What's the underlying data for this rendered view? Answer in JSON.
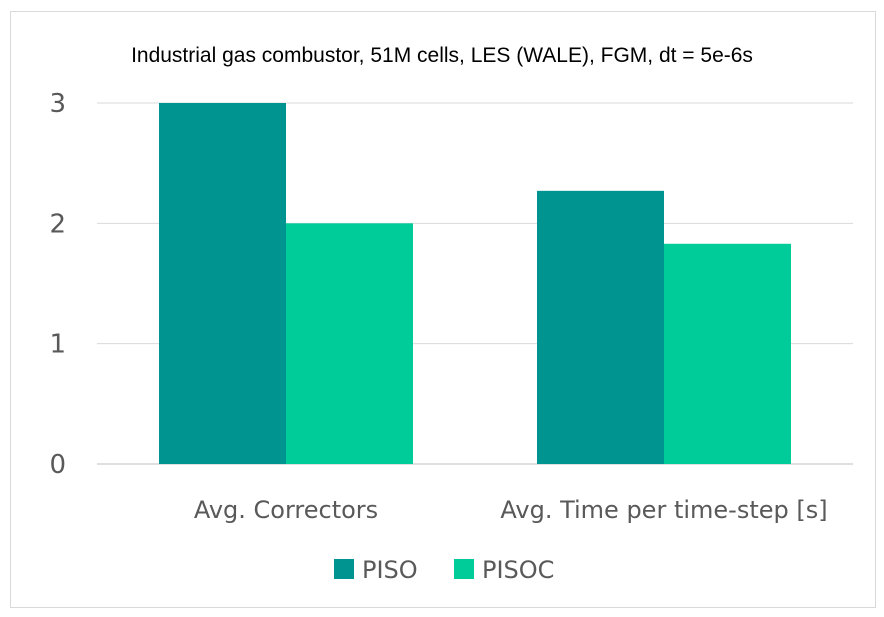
{
  "chart_data": {
    "type": "bar",
    "title": "Industrial gas combustor, 51M cells, LES (WALE), FGM, dt = 5e-6s",
    "categories": [
      "Avg. Correctors",
      "Avg. Time per time-step [s]"
    ],
    "series": [
      {
        "name": "PISO",
        "color": "#009490",
        "values": [
          3.0,
          2.27
        ]
      },
      {
        "name": "PISOC",
        "color": "#00CC99",
        "values": [
          2.0,
          1.83
        ]
      }
    ],
    "yticks": [
      0,
      1,
      2,
      3
    ],
    "ylim": [
      0,
      3
    ],
    "xlabel": "",
    "ylabel": "",
    "grid": true,
    "legend": "bottom-center"
  }
}
